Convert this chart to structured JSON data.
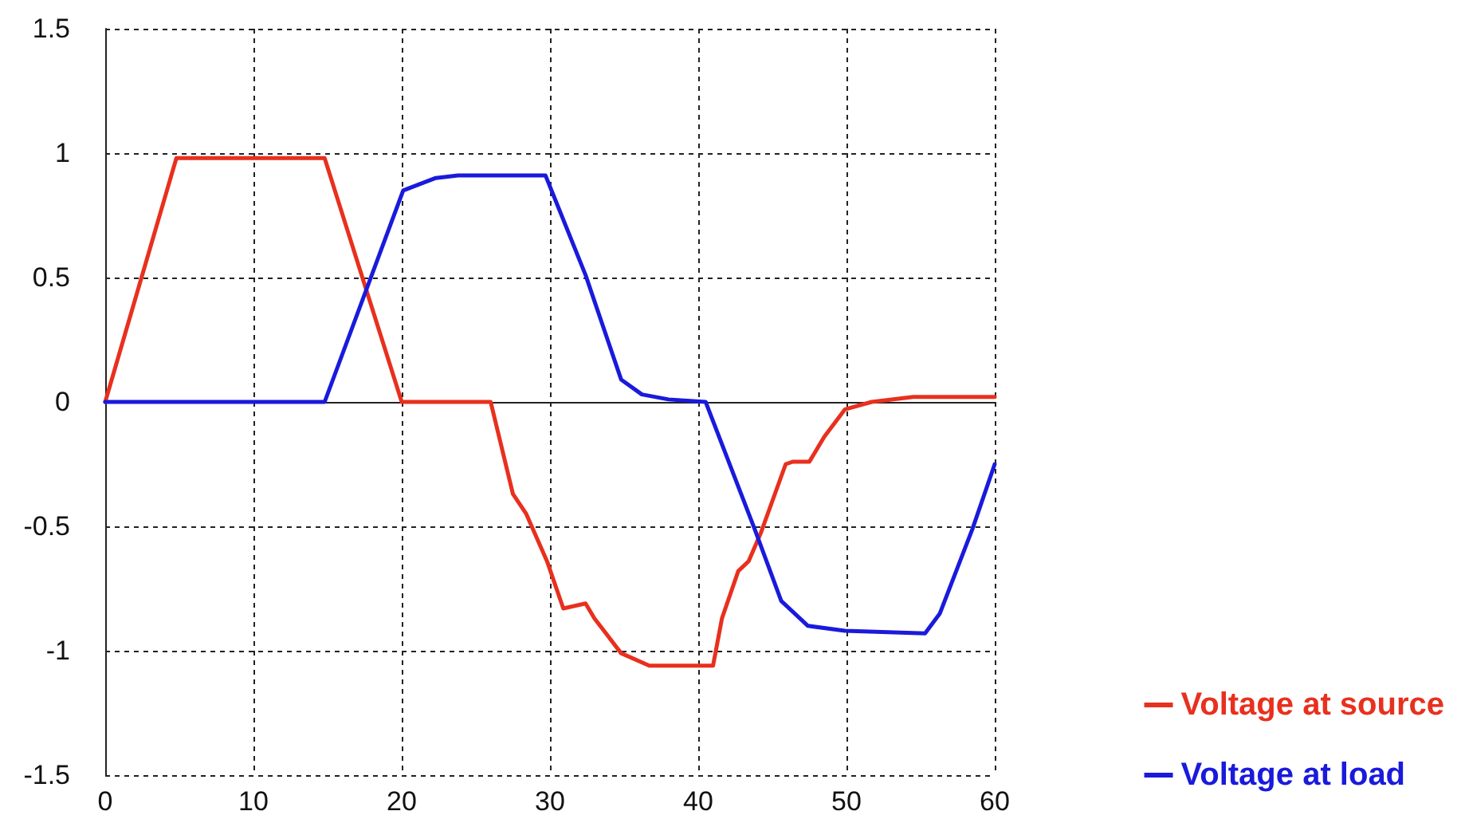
{
  "chart_data": {
    "type": "line",
    "xlim": [
      0,
      60
    ],
    "xticks": [
      0,
      10,
      20,
      30,
      40,
      50,
      60
    ],
    "ylim": [
      -1.5,
      1.5
    ],
    "yticks": [
      -1.5,
      -1,
      -0.5,
      0,
      0.5,
      1,
      1.5
    ],
    "grid": true,
    "legend": "bottom right",
    "marker": "none",
    "line_style": "solid",
    "series": [
      {
        "name": "Voltage at source",
        "color": "#e8301e",
        "x": [
          0,
          4.8,
          14.8,
          20,
          26,
          27.5,
          28.4,
          29.8,
          30.9,
          32.4,
          33,
          34.8,
          36.7,
          41,
          41.6,
          42.7,
          43.4,
          44.2,
          45.9,
          46.4,
          47.5,
          48.5,
          49.9,
          51.7,
          54.5,
          60
        ],
        "values": [
          0,
          0.98,
          0.98,
          0,
          0,
          -0.37,
          -0.45,
          -0.64,
          -0.83,
          -0.81,
          -0.87,
          -1.01,
          -1.06,
          -1.06,
          -0.87,
          -0.68,
          -0.64,
          -0.53,
          -0.25,
          -0.24,
          -0.24,
          -0.14,
          -0.03,
          0,
          0.02,
          0.02
        ]
      },
      {
        "name": "Voltage at load",
        "color": "#1a1adc",
        "x": [
          0,
          14.8,
          20.1,
          22.3,
          23.8,
          29.7,
          32.4,
          34.8,
          36.2,
          38,
          40.5,
          43.8,
          45.6,
          47.4,
          49.9,
          55.3,
          56.3,
          58.5,
          60
        ],
        "values": [
          0,
          0,
          0.85,
          0.9,
          0.91,
          0.91,
          0.51,
          0.09,
          0.03,
          0.01,
          0,
          -0.51,
          -0.8,
          -0.9,
          -0.92,
          -0.93,
          -0.85,
          -0.51,
          -0.25
        ]
      }
    ]
  }
}
